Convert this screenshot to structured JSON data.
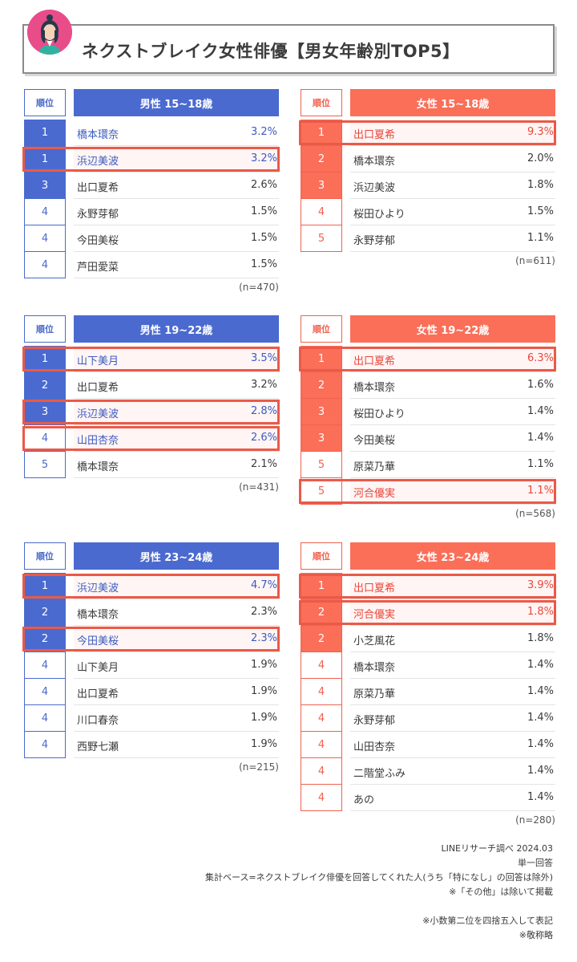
{
  "title": "ネクストブレイク女性俳優【男女年齢別TOP5】",
  "rank_header": "順位",
  "colors": {
    "male": "#4a6ad0",
    "female": "#fb6e58",
    "highlight": "#ea5a48"
  },
  "chart_data": [
    {
      "type": "table",
      "group": "男性 15~18歳",
      "n": "(n=470)",
      "rows": [
        {
          "rank": "1",
          "name": "橋本環奈",
          "pct": "3.2%",
          "top": true,
          "hl": false,
          "blue": true
        },
        {
          "rank": "1",
          "name": "浜辺美波",
          "pct": "3.2%",
          "top": true,
          "hl": true
        },
        {
          "rank": "3",
          "name": "出口夏希",
          "pct": "2.6%",
          "top": true,
          "hl": false
        },
        {
          "rank": "4",
          "name": "永野芽郁",
          "pct": "1.5%",
          "top": false,
          "hl": false
        },
        {
          "rank": "4",
          "name": "今田美桜",
          "pct": "1.5%",
          "top": false,
          "hl": false
        },
        {
          "rank": "4",
          "name": "芦田愛菜",
          "pct": "1.5%",
          "top": false,
          "hl": false
        }
      ]
    },
    {
      "type": "table",
      "group": "女性 15~18歳",
      "n": "(n=611)",
      "rows": [
        {
          "rank": "1",
          "name": "出口夏希",
          "pct": "9.3%",
          "top": true,
          "hl": true
        },
        {
          "rank": "2",
          "name": "橋本環奈",
          "pct": "2.0%",
          "top": true,
          "hl": false
        },
        {
          "rank": "3",
          "name": "浜辺美波",
          "pct": "1.8%",
          "top": true,
          "hl": false
        },
        {
          "rank": "4",
          "name": "桜田ひより",
          "pct": "1.5%",
          "top": false,
          "hl": false
        },
        {
          "rank": "5",
          "name": "永野芽郁",
          "pct": "1.1%",
          "top": false,
          "hl": false
        }
      ]
    },
    {
      "type": "table",
      "group": "男性 19~22歳",
      "n": "(n=431)",
      "rows": [
        {
          "rank": "1",
          "name": "山下美月",
          "pct": "3.5%",
          "top": true,
          "hl": true
        },
        {
          "rank": "2",
          "name": "出口夏希",
          "pct": "3.2%",
          "top": true,
          "hl": false
        },
        {
          "rank": "3",
          "name": "浜辺美波",
          "pct": "2.8%",
          "top": true,
          "hl": true
        },
        {
          "rank": "4",
          "name": "山田杏奈",
          "pct": "2.6%",
          "top": false,
          "hl": true
        },
        {
          "rank": "5",
          "name": "橋本環奈",
          "pct": "2.1%",
          "top": false,
          "hl": false
        }
      ]
    },
    {
      "type": "table",
      "group": "女性 19~22歳",
      "n": "(n=568)",
      "rows": [
        {
          "rank": "1",
          "name": "出口夏希",
          "pct": "6.3%",
          "top": true,
          "hl": true
        },
        {
          "rank": "2",
          "name": "橋本環奈",
          "pct": "1.6%",
          "top": true,
          "hl": false
        },
        {
          "rank": "3",
          "name": "桜田ひより",
          "pct": "1.4%",
          "top": true,
          "hl": false
        },
        {
          "rank": "3",
          "name": "今田美桜",
          "pct": "1.4%",
          "top": true,
          "hl": false
        },
        {
          "rank": "5",
          "name": "原菜乃華",
          "pct": "1.1%",
          "top": false,
          "hl": false
        },
        {
          "rank": "5",
          "name": "河合優実",
          "pct": "1.1%",
          "top": false,
          "hl": true
        }
      ]
    },
    {
      "type": "table",
      "group": "男性 23~24歳",
      "n": "(n=215)",
      "rows": [
        {
          "rank": "1",
          "name": "浜辺美波",
          "pct": "4.7%",
          "top": true,
          "hl": true
        },
        {
          "rank": "2",
          "name": "橋本環奈",
          "pct": "2.3%",
          "top": true,
          "hl": false
        },
        {
          "rank": "2",
          "name": "今田美桜",
          "pct": "2.3%",
          "top": true,
          "hl": true
        },
        {
          "rank": "4",
          "name": "山下美月",
          "pct": "1.9%",
          "top": false,
          "hl": false
        },
        {
          "rank": "4",
          "name": "出口夏希",
          "pct": "1.9%",
          "top": false,
          "hl": false
        },
        {
          "rank": "4",
          "name": "川口春奈",
          "pct": "1.9%",
          "top": false,
          "hl": false
        },
        {
          "rank": "4",
          "name": "西野七瀬",
          "pct": "1.9%",
          "top": false,
          "hl": false
        }
      ]
    },
    {
      "type": "table",
      "group": "女性 23~24歳",
      "n": "(n=280)",
      "rows": [
        {
          "rank": "1",
          "name": "出口夏希",
          "pct": "3.9%",
          "top": true,
          "hl": true
        },
        {
          "rank": "2",
          "name": "河合優実",
          "pct": "1.8%",
          "top": true,
          "hl": true
        },
        {
          "rank": "2",
          "name": "小芝風花",
          "pct": "1.8%",
          "top": true,
          "hl": false
        },
        {
          "rank": "4",
          "name": "橋本環奈",
          "pct": "1.4%",
          "top": false,
          "hl": false
        },
        {
          "rank": "4",
          "name": "原菜乃華",
          "pct": "1.4%",
          "top": false,
          "hl": false
        },
        {
          "rank": "4",
          "name": "永野芽郁",
          "pct": "1.4%",
          "top": false,
          "hl": false
        },
        {
          "rank": "4",
          "name": "山田杏奈",
          "pct": "1.4%",
          "top": false,
          "hl": false
        },
        {
          "rank": "4",
          "name": "二階堂ふみ",
          "pct": "1.4%",
          "top": false,
          "hl": false
        },
        {
          "rank": "4",
          "name": "あの",
          "pct": "1.4%",
          "top": false,
          "hl": false
        }
      ]
    }
  ],
  "footer": {
    "source": "LINEリサーチ調べ 2024.03",
    "answer_type": "単一回答",
    "base": "集計ベース=ネクストブレイク俳優を回答してくれた人(うち「特になし」の回答は除外)",
    "other_note": "※「その他」は除いて掲載",
    "rounding_note": "※小数第二位を四捨五入して表記",
    "honorific_note": "※敬称略"
  }
}
